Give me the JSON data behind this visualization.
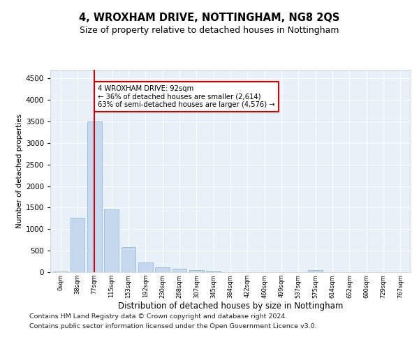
{
  "title": "4, WROXHAM DRIVE, NOTTINGHAM, NG8 2QS",
  "subtitle": "Size of property relative to detached houses in Nottingham",
  "xlabel": "Distribution of detached houses by size in Nottingham",
  "ylabel": "Number of detached properties",
  "categories": [
    "0sqm",
    "38sqm",
    "77sqm",
    "115sqm",
    "153sqm",
    "192sqm",
    "230sqm",
    "268sqm",
    "307sqm",
    "345sqm",
    "384sqm",
    "422sqm",
    "460sqm",
    "499sqm",
    "537sqm",
    "575sqm",
    "614sqm",
    "652sqm",
    "690sqm",
    "729sqm",
    "767sqm"
  ],
  "values": [
    10,
    1270,
    3500,
    1460,
    590,
    225,
    115,
    80,
    55,
    30,
    5,
    0,
    0,
    0,
    0,
    50,
    0,
    0,
    0,
    0,
    0
  ],
  "bar_color": "#c5d8ed",
  "bar_edgecolor": "#8ab4d4",
  "vline_x_index": 2,
  "vline_color": "#cc0000",
  "annotation_text": "4 WROXHAM DRIVE: 92sqm\n← 36% of detached houses are smaller (2,614)\n63% of semi-detached houses are larger (4,576) →",
  "annotation_box_facecolor": "#ffffff",
  "annotation_box_edgecolor": "#cc0000",
  "ylim": [
    0,
    4700
  ],
  "yticks": [
    0,
    500,
    1000,
    1500,
    2000,
    2500,
    3000,
    3500,
    4000,
    4500
  ],
  "bg_color": "#e8f0f8",
  "footer_line1": "Contains HM Land Registry data © Crown copyright and database right 2024.",
  "footer_line2": "Contains public sector information licensed under the Open Government Licence v3.0."
}
